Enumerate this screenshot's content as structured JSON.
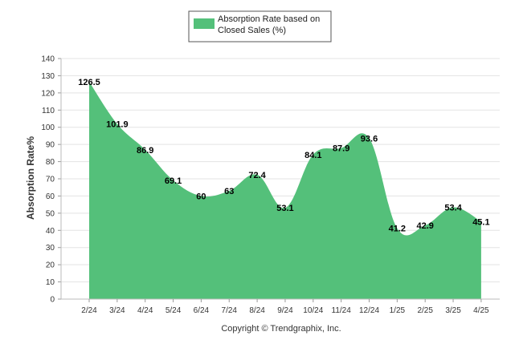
{
  "chart_data": {
    "type": "area",
    "categories": [
      "2/24",
      "3/24",
      "4/24",
      "5/24",
      "6/24",
      "7/24",
      "8/24",
      "9/24",
      "10/24",
      "11/24",
      "12/24",
      "1/25",
      "2/25",
      "3/25",
      "4/25"
    ],
    "series": [
      {
        "name": "Absorption Rate based on Closed Sales (%)",
        "name_lines": [
          "Absorption Rate based on",
          "Closed Sales (%)"
        ],
        "values": [
          126.5,
          101.9,
          86.9,
          69.1,
          60,
          63,
          72.4,
          53.1,
          84.1,
          87.9,
          93.6,
          41.2,
          42.9,
          53.4,
          45.1
        ],
        "color": "#54c07a"
      }
    ],
    "ylabel": "Absorption Rate%",
    "ylim": [
      0,
      140
    ],
    "yticks": [
      0,
      10,
      20,
      30,
      40,
      50,
      60,
      70,
      80,
      90,
      100,
      110,
      120,
      130,
      140
    ],
    "grid": true,
    "legend_position": "top-center"
  },
  "footer": "Copyright © Trendgraphix, Inc."
}
